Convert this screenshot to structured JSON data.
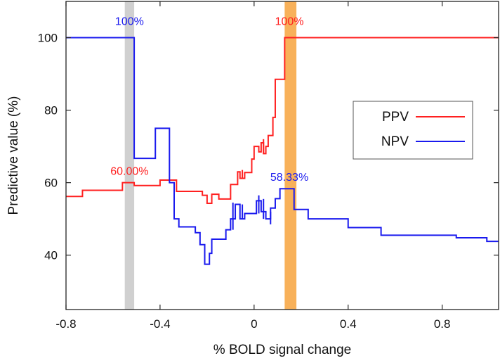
{
  "chart_data": {
    "type": "line",
    "title": "",
    "xlabel": "% BOLD signal change",
    "ylabel": "Predictive value (%)",
    "xlim": [
      -0.8,
      1.04
    ],
    "ylim": [
      25,
      110
    ],
    "xticks": [
      -0.8,
      -0.4,
      0,
      0.4,
      0.8
    ],
    "xtick_labels": [
      "-0.8",
      "-0.4",
      "0",
      "0.4",
      "0.8"
    ],
    "yticks": [
      40,
      60,
      80,
      100
    ],
    "ytick_labels": [
      "40",
      "60",
      "80",
      "100"
    ],
    "grid": false,
    "legend_position": "right",
    "series": [
      {
        "name": "PPV",
        "color": "#ff2020",
        "x": [
          -0.8,
          -0.73,
          -0.73,
          -0.56,
          -0.56,
          -0.51,
          -0.51,
          -0.4,
          -0.4,
          -0.33,
          -0.33,
          -0.22,
          -0.22,
          -0.2,
          -0.2,
          -0.18,
          -0.18,
          -0.15,
          -0.15,
          -0.1,
          -0.1,
          -0.07,
          -0.07,
          -0.06,
          -0.06,
          -0.04,
          -0.04,
          -0.01,
          -0.01,
          0.0,
          0.0,
          0.02,
          0.02,
          0.03,
          0.03,
          0.04,
          0.04,
          0.05,
          0.05,
          0.06,
          0.06,
          0.08,
          0.08,
          0.09,
          0.09,
          0.1,
          0.1,
          0.13,
          0.13,
          1.04
        ],
        "values": [
          56.2,
          56.2,
          57.9,
          57.9,
          60.0,
          60.0,
          59.2,
          59.2,
          60.7,
          60.7,
          57.6,
          57.6,
          56.5,
          56.5,
          54.3,
          54.3,
          56.8,
          56.8,
          55.5,
          55.5,
          59.5,
          59.5,
          63.0,
          63.0,
          61.2,
          61.2,
          62.8,
          62.8,
          66.5,
          66.5,
          70.0,
          70.0,
          68.5,
          68.5,
          71.0,
          71.0,
          68.0,
          68.0,
          70.0,
          70.0,
          73.0,
          73.0,
          78.0,
          78.0,
          88.5,
          88.5,
          88.5,
          88.5,
          100.0,
          100.0
        ]
      },
      {
        "name": "NPV",
        "color": "#1a1aee",
        "x": [
          -0.8,
          -0.51,
          -0.51,
          -0.42,
          -0.42,
          -0.36,
          -0.36,
          -0.34,
          -0.34,
          -0.32,
          -0.32,
          -0.25,
          -0.25,
          -0.23,
          -0.23,
          -0.21,
          -0.21,
          -0.19,
          -0.19,
          -0.18,
          -0.18,
          -0.12,
          -0.12,
          -0.1,
          -0.1,
          -0.08,
          -0.08,
          -0.06,
          -0.06,
          -0.04,
          -0.04,
          0.01,
          0.01,
          0.03,
          0.03,
          0.05,
          0.05,
          0.07,
          0.07,
          0.09,
          0.09,
          0.11,
          0.11,
          0.17,
          0.17,
          0.23,
          0.23,
          0.4,
          0.4,
          0.54,
          0.54,
          0.86,
          0.86,
          0.99,
          0.99,
          1.04
        ],
        "values": [
          100.0,
          100.0,
          66.7,
          66.7,
          75.0,
          75.0,
          60.0,
          60.0,
          50.0,
          50.0,
          47.8,
          47.8,
          46.2,
          46.2,
          42.9,
          42.9,
          37.5,
          37.5,
          40.5,
          40.5,
          44.4,
          44.4,
          47.0,
          47.0,
          50.0,
          50.0,
          54.0,
          54.0,
          50.0,
          50.0,
          51.5,
          51.5,
          55.0,
          55.0,
          52.0,
          52.0,
          50.0,
          50.0,
          53.0,
          53.0,
          55.6,
          55.6,
          58.33,
          58.33,
          52.6,
          52.6,
          50.0,
          50.0,
          47.6,
          47.6,
          45.5,
          45.5,
          44.8,
          44.8,
          43.8,
          43.8
        ]
      }
    ],
    "spikes": [
      {
        "series": "NPV",
        "x": -0.09,
        "from": 47.0,
        "to": 54.5
      },
      {
        "series": "NPV",
        "x": -0.05,
        "from": 50.0,
        "to": 54.0
      },
      {
        "series": "NPV",
        "x": 0.02,
        "from": 51.5,
        "to": 56.5
      },
      {
        "series": "NPV",
        "x": 0.04,
        "from": 50.0,
        "to": 55.5
      },
      {
        "series": "NPV",
        "x": 0.07,
        "from": 48.5,
        "to": 52.0
      },
      {
        "series": "PPV",
        "x": -0.05,
        "from": 61.2,
        "to": 63.5
      },
      {
        "series": "PPV",
        "x": 0.04,
        "from": 68.0,
        "to": 72.0
      }
    ],
    "bands": [
      {
        "name": "npv-threshold-band",
        "x_from": -0.55,
        "x_to": -0.51,
        "color": "#d0d0d0"
      },
      {
        "name": "ppv-threshold-band",
        "x_from": 0.13,
        "x_to": 0.18,
        "color": "#f8b15a"
      }
    ],
    "annotations": [
      {
        "name": "npv-max-label",
        "text": "100%",
        "x": -0.53,
        "y": 103.5,
        "color": "#1a1aee"
      },
      {
        "name": "ppv-max-label",
        "text": "100%",
        "x": 0.15,
        "y": 103.5,
        "color": "#ff2020"
      },
      {
        "name": "ppv-at-npv-threshold-label",
        "text": "60.00%",
        "x": -0.53,
        "y": 62.2,
        "color": "#ff2020"
      },
      {
        "name": "npv-at-ppv-threshold-label",
        "text": "58.33%",
        "x": 0.15,
        "y": 60.5,
        "color": "#1a1aee"
      }
    ]
  }
}
